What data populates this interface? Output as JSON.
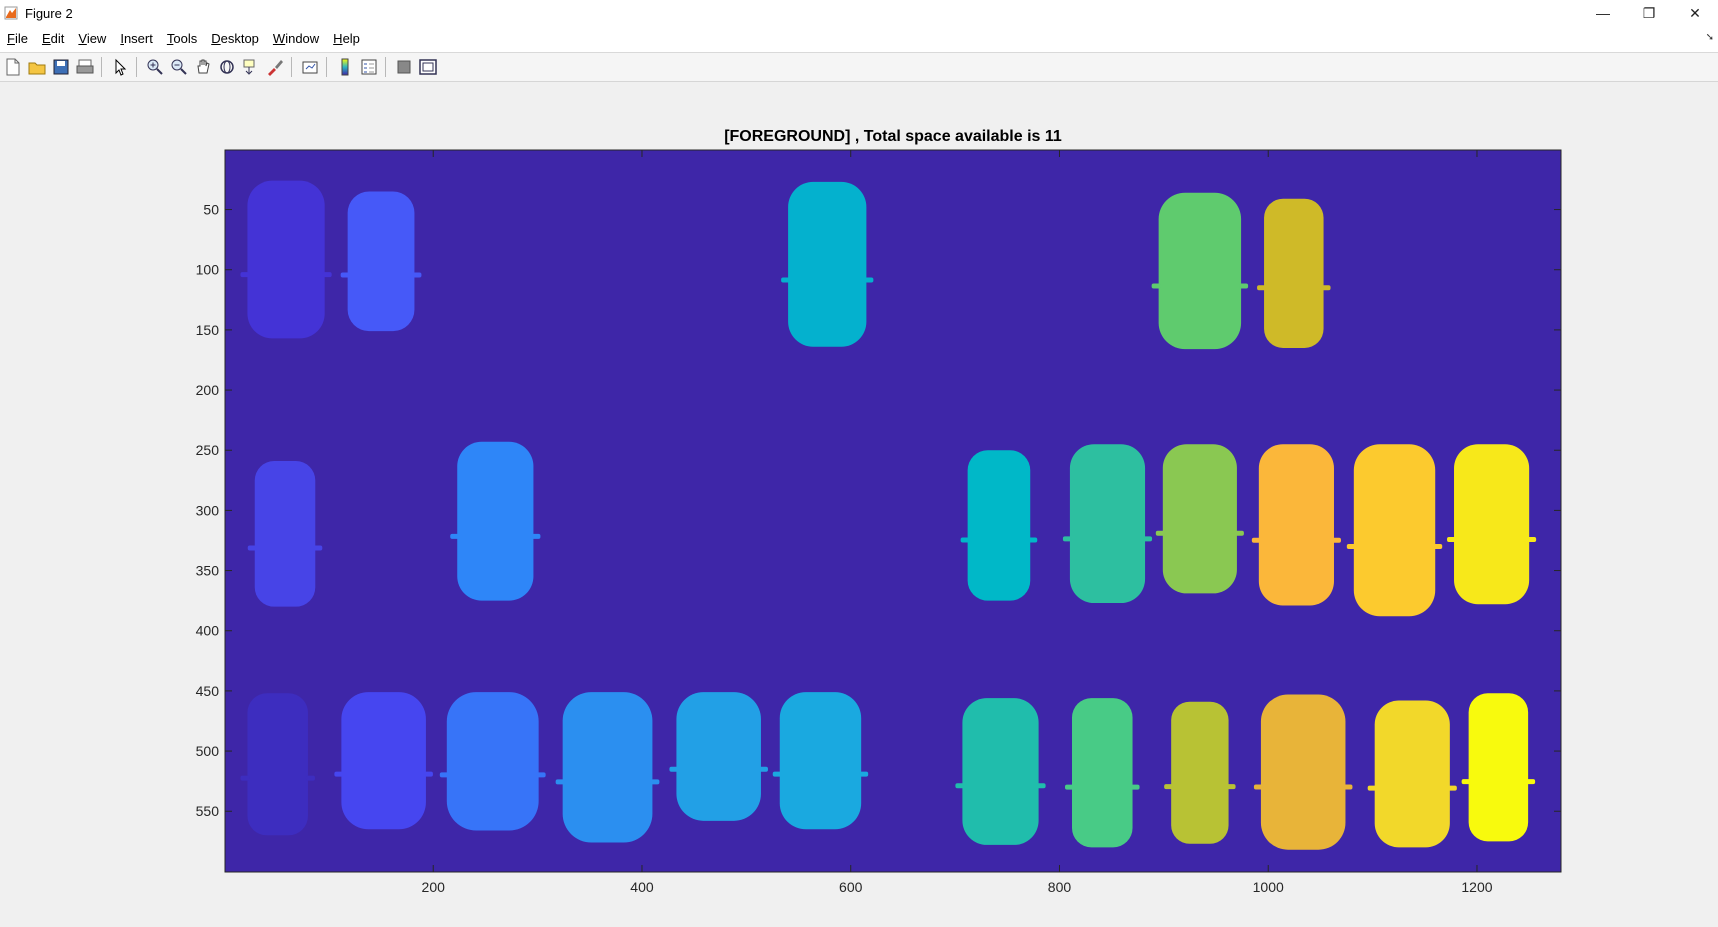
{
  "window": {
    "title": "Figure 2",
    "controls": [
      "—",
      "❐",
      "✕"
    ]
  },
  "menu": [
    {
      "label": "File",
      "acc": "F",
      "rest": "ile"
    },
    {
      "label": "Edit",
      "acc": "E",
      "rest": "dit"
    },
    {
      "label": "View",
      "acc": "V",
      "rest": "iew"
    },
    {
      "label": "Insert",
      "acc": "I",
      "rest": "nsert"
    },
    {
      "label": "Tools",
      "acc": "T",
      "rest": "ools"
    },
    {
      "label": "Desktop",
      "acc": "D",
      "rest": "esktop"
    },
    {
      "label": "Window",
      "acc": "W",
      "rest": "indow"
    },
    {
      "label": "Help",
      "acc": "H",
      "rest": "elp"
    }
  ],
  "toolbar": [
    {
      "name": "new-figure-icon",
      "group": 0
    },
    {
      "name": "open-file-icon",
      "group": 0
    },
    {
      "name": "save-icon",
      "group": 0
    },
    {
      "name": "print-icon",
      "group": 0
    },
    {
      "name": "edit-plot-icon",
      "group": 1
    },
    {
      "name": "zoom-in-icon",
      "group": 2
    },
    {
      "name": "zoom-out-icon",
      "group": 2
    },
    {
      "name": "pan-icon",
      "group": 2
    },
    {
      "name": "rotate-3d-icon",
      "group": 2
    },
    {
      "name": "data-cursor-icon",
      "group": 2
    },
    {
      "name": "brush-icon",
      "group": 2
    },
    {
      "name": "link-plot-icon",
      "group": 3
    },
    {
      "name": "insert-colorbar-icon",
      "group": 4
    },
    {
      "name": "insert-legend-icon",
      "group": 4
    },
    {
      "name": "hide-plot-tools-icon",
      "group": 5
    },
    {
      "name": "show-plot-tools-icon",
      "group": 5
    }
  ],
  "chart_data": {
    "type": "heatmap",
    "title": "[FOREGROUND] , Total space available is 11",
    "xlabel": "",
    "ylabel": "",
    "xlim": [
      0.5,
      1280.5
    ],
    "ylim": [
      0.5,
      600.5
    ],
    "y_reversed": true,
    "xticks": [
      200,
      400,
      600,
      800,
      1000,
      1200
    ],
    "yticks": [
      50,
      100,
      150,
      200,
      250,
      300,
      350,
      400,
      450,
      500,
      550
    ],
    "background_color": "#3e26a8",
    "blobs": [
      {
        "x": [
          22,
          96
        ],
        "y": [
          26,
          157
        ],
        "color": "#4433d6"
      },
      {
        "x": [
          118,
          182
        ],
        "y": [
          35,
          151
        ],
        "color": "#4659f8"
      },
      {
        "x": [
          540,
          615
        ],
        "y": [
          27,
          164
        ],
        "color": "#04b1ce"
      },
      {
        "x": [
          895,
          974
        ],
        "y": [
          36,
          166
        ],
        "color": "#5fcb6e"
      },
      {
        "x": [
          996,
          1053
        ],
        "y": [
          41,
          165
        ],
        "color": "#cfba28"
      },
      {
        "x": [
          29,
          87
        ],
        "y": [
          259,
          380
        ],
        "color": "#4744e7"
      },
      {
        "x": [
          223,
          296
        ],
        "y": [
          243,
          375
        ],
        "color": "#2e86f8"
      },
      {
        "x": [
          712,
          772
        ],
        "y": [
          250,
          375
        ],
        "color": "#00b8c8"
      },
      {
        "x": [
          810,
          882
        ],
        "y": [
          245,
          377
        ],
        "color": "#2dbfa0"
      },
      {
        "x": [
          899,
          970
        ],
        "y": [
          245,
          369
        ],
        "color": "#8ac852"
      },
      {
        "x": [
          991,
          1063
        ],
        "y": [
          245,
          379
        ],
        "color": "#fbb73a"
      },
      {
        "x": [
          1082,
          1160
        ],
        "y": [
          245,
          388
        ],
        "color": "#fcca2e"
      },
      {
        "x": [
          1178,
          1250
        ],
        "y": [
          245,
          378
        ],
        "color": "#f7e81a"
      },
      {
        "x": [
          22,
          80
        ],
        "y": [
          452,
          570
        ],
        "color": "#3d2dbf"
      },
      {
        "x": [
          112,
          193
        ],
        "y": [
          451,
          565
        ],
        "color": "#4646f0"
      },
      {
        "x": [
          213,
          301
        ],
        "y": [
          451,
          566
        ],
        "color": "#3774f8"
      },
      {
        "x": [
          324,
          410
        ],
        "y": [
          451,
          576
        ],
        "color": "#2b8ff0"
      },
      {
        "x": [
          433,
          514
        ],
        "y": [
          451,
          558
        ],
        "color": "#22a0e6"
      },
      {
        "x": [
          532,
          610
        ],
        "y": [
          451,
          565
        ],
        "color": "#1aa9e0"
      },
      {
        "x": [
          707,
          780
        ],
        "y": [
          456,
          578
        ],
        "color": "#20bdac"
      },
      {
        "x": [
          812,
          870
        ],
        "y": [
          456,
          580
        ],
        "color": "#48cb86"
      },
      {
        "x": [
          907,
          962
        ],
        "y": [
          459,
          577
        ],
        "color": "#b8c234"
      },
      {
        "x": [
          993,
          1074
        ],
        "y": [
          453,
          582
        ],
        "color": "#e8b439"
      },
      {
        "x": [
          1102,
          1174
        ],
        "y": [
          458,
          580
        ],
        "color": "#f2d82a"
      },
      {
        "x": [
          1192,
          1249
        ],
        "y": [
          452,
          575
        ],
        "color": "#f8fa0d"
      }
    ]
  }
}
